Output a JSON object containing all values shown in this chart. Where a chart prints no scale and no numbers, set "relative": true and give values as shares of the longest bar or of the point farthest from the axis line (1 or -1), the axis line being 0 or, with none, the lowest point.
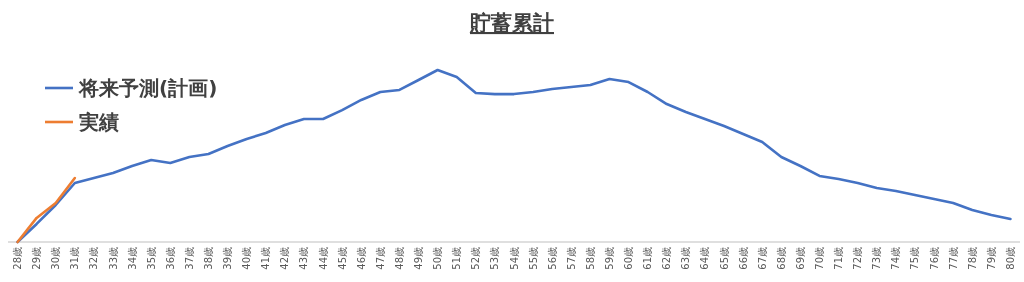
{
  "chart_data": {
    "type": "line",
    "title": "貯蓄累計",
    "relative": true,
    "legend": "top left",
    "grid": false,
    "marker": "none",
    "line_style": "solid",
    "categories": [
      "28歳",
      "29歳",
      "30歳",
      "31歳",
      "32歳",
      "33歳",
      "34歳",
      "35歳",
      "36歳",
      "37歳",
      "38歳",
      "39歳",
      "40歳",
      "41歳",
      "42歳",
      "43歳",
      "44歳",
      "45歳",
      "46歳",
      "47歳",
      "48歳",
      "49歳",
      "50歳",
      "51歳",
      "52歳",
      "53歳",
      "54歳",
      "55歳",
      "56歳",
      "57歳",
      "58歳",
      "59歳",
      "60歳",
      "61歳",
      "62歳",
      "63歳",
      "64歳",
      "65歳",
      "66歳",
      "67歳",
      "68歳",
      "69歳",
      "70歳",
      "71歳",
      "72歳",
      "73歳",
      "74歳",
      "75歳",
      "76歳",
      "77歳",
      "78歳",
      "79歳",
      "80歳"
    ],
    "series": [
      {
        "name": "将来予測(計画)",
        "color": "#4472c4",
        "values": [
          0,
          0.105,
          0.215,
          0.343,
          0.372,
          0.401,
          0.442,
          0.477,
          0.459,
          0.494,
          0.512,
          0.558,
          0.599,
          0.634,
          0.68,
          0.715,
          0.715,
          0.767,
          0.826,
          0.872,
          0.884,
          0.942,
          1,
          0.959,
          0.866,
          0.86,
          0.86,
          0.872,
          0.89,
          0.901,
          0.913,
          0.948,
          0.93,
          0.872,
          0.802,
          0.756,
          0.715,
          0.674,
          0.628,
          0.581,
          0.494,
          0.442,
          0.384,
          0.366,
          0.343,
          0.314,
          0.297,
          0.273,
          0.25,
          0.227,
          0.186,
          0.157,
          0.134
        ]
      },
      {
        "name": "実績",
        "color": "#ed7d31",
        "values": [
          0,
          0.14,
          0.227,
          0.372,
          null,
          null,
          null,
          null,
          null,
          null,
          null,
          null,
          null,
          null,
          null,
          null,
          null,
          null,
          null,
          null,
          null,
          null,
          null,
          null,
          null,
          null,
          null,
          null,
          null,
          null,
          null,
          null,
          null,
          null,
          null,
          null,
          null,
          null,
          null,
          null,
          null,
          null,
          null,
          null,
          null,
          null,
          null,
          null,
          null,
          null,
          null,
          null,
          null
        ]
      }
    ]
  }
}
